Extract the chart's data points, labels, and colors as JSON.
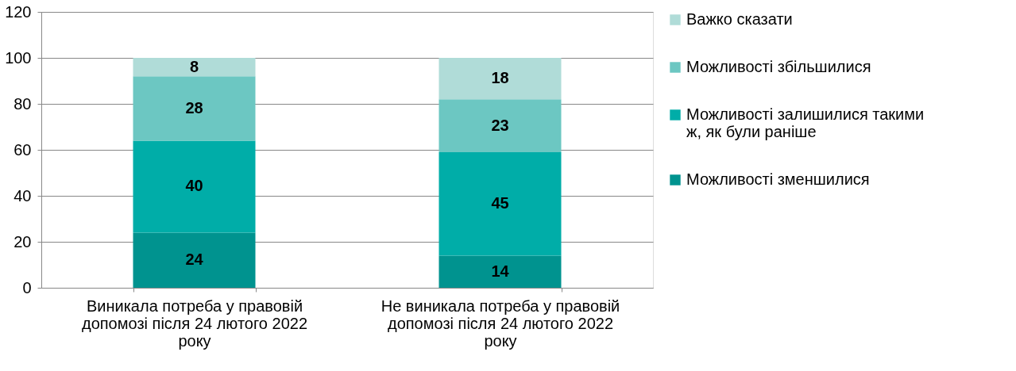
{
  "chart_data": {
    "type": "bar",
    "stacked": true,
    "data_labels": true,
    "grid": "y",
    "legend": "right",
    "categories": [
      "Виникала потреба у правовій допомозі після 24 лютого 2022 року",
      "Не виникала потреба у правовій допомозі після 24 лютого 2022 року"
    ],
    "series": [
      {
        "name": "Можливості зменшилися",
        "color": "#00938f",
        "values": [
          24,
          14
        ]
      },
      {
        "name": "Можливості залишилися такими ж, як були раніше",
        "color": "#00ada8",
        "values": [
          40,
          45
        ]
      },
      {
        "name": "Можливості збільшилися",
        "color": "#6cc7c2",
        "values": [
          28,
          23
        ]
      },
      {
        "name": "Важко сказати",
        "color": "#b0dcd8",
        "values": [
          8,
          18
        ]
      }
    ],
    "ylim": [
      0,
      120
    ],
    "yticks": [
      0,
      20,
      40,
      60,
      80,
      100,
      120
    ]
  }
}
